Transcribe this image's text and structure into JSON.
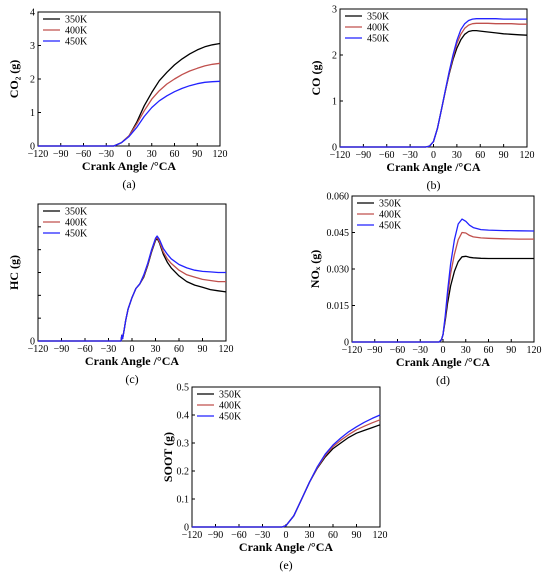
{
  "chart_data": [
    {
      "panel": "a",
      "type": "line",
      "caption": "(a)",
      "xlabel": "Crank Angle /°CA",
      "ylabel": "CO₂ (g)",
      "xlim": [
        -120,
        120
      ],
      "ylim": [
        0,
        4
      ],
      "xticks": [
        -120,
        -90,
        -60,
        -30,
        0,
        30,
        60,
        90,
        120
      ],
      "yticks": [
        0,
        1,
        2,
        3,
        4
      ],
      "legend_position": "top-left",
      "series": [
        {
          "name": "350K",
          "color": "#000000",
          "x": [
            -120,
            -20,
            -10,
            0,
            10,
            20,
            30,
            40,
            50,
            60,
            70,
            80,
            90,
            100,
            110,
            120
          ],
          "y": [
            0,
            0,
            0.1,
            0.3,
            0.7,
            1.2,
            1.6,
            1.95,
            2.2,
            2.42,
            2.6,
            2.75,
            2.87,
            2.96,
            3.02,
            3.06
          ]
        },
        {
          "name": "400K",
          "color": "#c0504d",
          "x": [
            -120,
            -20,
            -10,
            0,
            10,
            20,
            30,
            40,
            50,
            60,
            70,
            80,
            90,
            100,
            110,
            120
          ],
          "y": [
            0,
            0,
            0.1,
            0.3,
            0.65,
            1.05,
            1.4,
            1.65,
            1.85,
            2.0,
            2.13,
            2.24,
            2.32,
            2.39,
            2.44,
            2.47
          ]
        },
        {
          "name": "450K",
          "color": "#2222ff",
          "x": [
            -120,
            -20,
            -10,
            0,
            10,
            20,
            30,
            40,
            50,
            60,
            70,
            80,
            90,
            100,
            110,
            120
          ],
          "y": [
            0,
            0,
            0.1,
            0.28,
            0.55,
            0.88,
            1.15,
            1.35,
            1.5,
            1.62,
            1.72,
            1.8,
            1.86,
            1.9,
            1.92,
            1.93
          ]
        }
      ]
    },
    {
      "panel": "b",
      "type": "line",
      "caption": "(b)",
      "xlabel": "Crank Angle /°CA",
      "ylabel": "CO (g)",
      "xlim": [
        -120,
        120
      ],
      "ylim": [
        0,
        3
      ],
      "xticks": [
        -120,
        -90,
        -60,
        -30,
        0,
        30,
        60,
        90,
        120
      ],
      "yticks": [
        0,
        1,
        2,
        3
      ],
      "legend_position": "top-left",
      "series": [
        {
          "name": "350K",
          "color": "#000000",
          "x": [
            -120,
            -10,
            -5,
            0,
            5,
            10,
            15,
            20,
            25,
            30,
            35,
            40,
            45,
            50,
            55,
            60,
            70,
            80,
            90,
            100,
            110,
            120
          ],
          "y": [
            0,
            0,
            0.02,
            0.12,
            0.4,
            0.8,
            1.2,
            1.58,
            1.9,
            2.15,
            2.33,
            2.45,
            2.51,
            2.53,
            2.53,
            2.52,
            2.5,
            2.48,
            2.46,
            2.45,
            2.44,
            2.43
          ]
        },
        {
          "name": "400K",
          "color": "#c0504d",
          "x": [
            -120,
            -10,
            -5,
            0,
            5,
            10,
            15,
            20,
            25,
            30,
            35,
            40,
            45,
            50,
            55,
            60,
            70,
            80,
            90,
            100,
            110,
            120
          ],
          "y": [
            0,
            0,
            0.02,
            0.12,
            0.4,
            0.8,
            1.2,
            1.6,
            1.95,
            2.25,
            2.45,
            2.58,
            2.65,
            2.68,
            2.69,
            2.69,
            2.69,
            2.68,
            2.68,
            2.68,
            2.67,
            2.67
          ]
        },
        {
          "name": "450K",
          "color": "#2222ff",
          "x": [
            -120,
            -10,
            -5,
            0,
            5,
            10,
            15,
            20,
            25,
            30,
            35,
            40,
            45,
            50,
            55,
            60,
            70,
            80,
            90,
            100,
            110,
            120
          ],
          "y": [
            0,
            0,
            0.02,
            0.12,
            0.4,
            0.8,
            1.22,
            1.63,
            2.0,
            2.32,
            2.55,
            2.68,
            2.75,
            2.78,
            2.79,
            2.79,
            2.79,
            2.79,
            2.78,
            2.78,
            2.78,
            2.78
          ]
        }
      ]
    },
    {
      "panel": "c",
      "type": "line",
      "caption": "(c)",
      "xlabel": "Crank Angle /°CA",
      "ylabel": "HC (g)",
      "xlim": [
        -120,
        120
      ],
      "ylim": [
        0,
        1.2
      ],
      "xticks": [
        -120,
        -90,
        -60,
        -30,
        0,
        30,
        60,
        90,
        120
      ],
      "yticks": [
        0,
        0.2,
        0.4,
        0.6,
        0.8,
        1.0,
        1.2
      ],
      "ytick_labels": [
        "0",
        "",
        "",
        "",
        "",
        "",
        ""
      ],
      "legend_position": "top-left",
      "series": [
        {
          "name": "350K",
          "color": "#000000",
          "x": [
            -120,
            -14,
            -13,
            -12,
            -11,
            -10,
            -8,
            -5,
            0,
            5,
            10,
            15,
            20,
            25,
            30,
            32,
            35,
            40,
            45,
            50,
            60,
            70,
            80,
            90,
            100,
            110,
            120
          ],
          "y": [
            0,
            0,
            0.05,
            0.02,
            0.06,
            0.1,
            0.18,
            0.28,
            0.38,
            0.46,
            0.5,
            0.56,
            0.66,
            0.78,
            0.88,
            0.9,
            0.86,
            0.76,
            0.69,
            0.64,
            0.57,
            0.52,
            0.49,
            0.47,
            0.45,
            0.44,
            0.43
          ]
        },
        {
          "name": "400K",
          "color": "#c0504d",
          "x": [
            -120,
            -14,
            -13,
            -12,
            -11,
            -10,
            -8,
            -5,
            0,
            5,
            10,
            15,
            20,
            25,
            30,
            32,
            35,
            40,
            45,
            50,
            60,
            70,
            80,
            90,
            100,
            110,
            120
          ],
          "y": [
            0,
            0,
            0.05,
            0.02,
            0.06,
            0.1,
            0.18,
            0.28,
            0.38,
            0.46,
            0.5,
            0.57,
            0.67,
            0.79,
            0.89,
            0.91,
            0.87,
            0.78,
            0.72,
            0.68,
            0.62,
            0.58,
            0.56,
            0.54,
            0.53,
            0.52,
            0.52
          ]
        },
        {
          "name": "450K",
          "color": "#2222ff",
          "x": [
            -120,
            -14,
            -13,
            -12,
            -11,
            -10,
            -8,
            -5,
            0,
            5,
            10,
            15,
            20,
            25,
            30,
            32,
            35,
            40,
            45,
            50,
            60,
            70,
            80,
            90,
            100,
            110,
            120
          ],
          "y": [
            0,
            0,
            0.05,
            0.02,
            0.06,
            0.1,
            0.18,
            0.28,
            0.38,
            0.46,
            0.5,
            0.58,
            0.68,
            0.8,
            0.9,
            0.92,
            0.89,
            0.81,
            0.76,
            0.72,
            0.67,
            0.64,
            0.62,
            0.61,
            0.605,
            0.6,
            0.6
          ]
        }
      ]
    },
    {
      "panel": "d",
      "type": "line",
      "caption": "(d)",
      "xlabel": "Crank Angle /°CA",
      "ylabel": "NOₓ (g)",
      "xlim": [
        -120,
        120
      ],
      "ylim": [
        0,
        0.06
      ],
      "xticks": [
        -120,
        -90,
        -60,
        -30,
        0,
        30,
        60,
        90,
        120
      ],
      "yticks": [
        0,
        0.015,
        0.03,
        0.045,
        0.06
      ],
      "ytick_labels": [
        "0",
        "0.015",
        "0.030",
        "0.045",
        "0.060"
      ],
      "legend_position": "top-left",
      "series": [
        {
          "name": "350K",
          "color": "#000000",
          "x": [
            -120,
            -5,
            -2,
            0,
            3,
            6,
            10,
            15,
            20,
            25,
            30,
            35,
            40,
            50,
            60,
            80,
            100,
            120
          ],
          "y": [
            0,
            0,
            0.001,
            0.003,
            0.009,
            0.016,
            0.023,
            0.029,
            0.033,
            0.035,
            0.0352,
            0.0348,
            0.0346,
            0.0344,
            0.0343,
            0.0343,
            0.0343,
            0.0343
          ]
        },
        {
          "name": "400K",
          "color": "#c0504d",
          "x": [
            -120,
            -5,
            -2,
            0,
            3,
            6,
            10,
            15,
            20,
            25,
            30,
            35,
            40,
            50,
            60,
            80,
            100,
            120
          ],
          "y": [
            0,
            0,
            0.001,
            0.003,
            0.01,
            0.019,
            0.028,
            0.036,
            0.042,
            0.045,
            0.0448,
            0.0438,
            0.0432,
            0.0428,
            0.0426,
            0.0424,
            0.0423,
            0.0423
          ]
        },
        {
          "name": "450K",
          "color": "#2222ff",
          "x": [
            -120,
            -5,
            -2,
            0,
            3,
            6,
            10,
            15,
            20,
            25,
            30,
            35,
            40,
            50,
            60,
            80,
            100,
            120
          ],
          "y": [
            0,
            0,
            0.001,
            0.003,
            0.011,
            0.021,
            0.032,
            0.042,
            0.0485,
            0.0505,
            0.0496,
            0.048,
            0.047,
            0.0462,
            0.046,
            0.0458,
            0.0457,
            0.0456
          ]
        }
      ]
    },
    {
      "panel": "e",
      "type": "line",
      "caption": "(e)",
      "xlabel": "Crank Angle /°CA",
      "ylabel": "SOOT (g)",
      "xlim": [
        -120,
        120
      ],
      "ylim": [
        0,
        0.5
      ],
      "xticks": [
        -120,
        -90,
        -60,
        -30,
        0,
        30,
        60,
        90,
        120
      ],
      "yticks": [
        0,
        0.1,
        0.2,
        0.3,
        0.4,
        0.5
      ],
      "legend_position": "top-left",
      "series": [
        {
          "name": "350K",
          "color": "#000000",
          "x": [
            -120,
            -5,
            0,
            10,
            20,
            30,
            40,
            50,
            60,
            70,
            80,
            90,
            100,
            110,
            120
          ],
          "y": [
            0,
            0,
            0.005,
            0.04,
            0.1,
            0.16,
            0.21,
            0.25,
            0.28,
            0.3,
            0.32,
            0.335,
            0.345,
            0.355,
            0.365
          ]
        },
        {
          "name": "400K",
          "color": "#c0504d",
          "x": [
            -120,
            -5,
            0,
            10,
            20,
            30,
            40,
            50,
            60,
            70,
            80,
            90,
            100,
            110,
            120
          ],
          "y": [
            0,
            0,
            0.005,
            0.04,
            0.1,
            0.16,
            0.212,
            0.255,
            0.287,
            0.31,
            0.33,
            0.347,
            0.36,
            0.372,
            0.383
          ]
        },
        {
          "name": "450K",
          "color": "#2222ff",
          "x": [
            -120,
            -5,
            0,
            10,
            20,
            30,
            40,
            50,
            60,
            70,
            80,
            90,
            100,
            110,
            120
          ],
          "y": [
            0,
            0,
            0.005,
            0.04,
            0.1,
            0.16,
            0.215,
            0.26,
            0.293,
            0.318,
            0.34,
            0.358,
            0.374,
            0.388,
            0.4
          ]
        }
      ]
    }
  ]
}
